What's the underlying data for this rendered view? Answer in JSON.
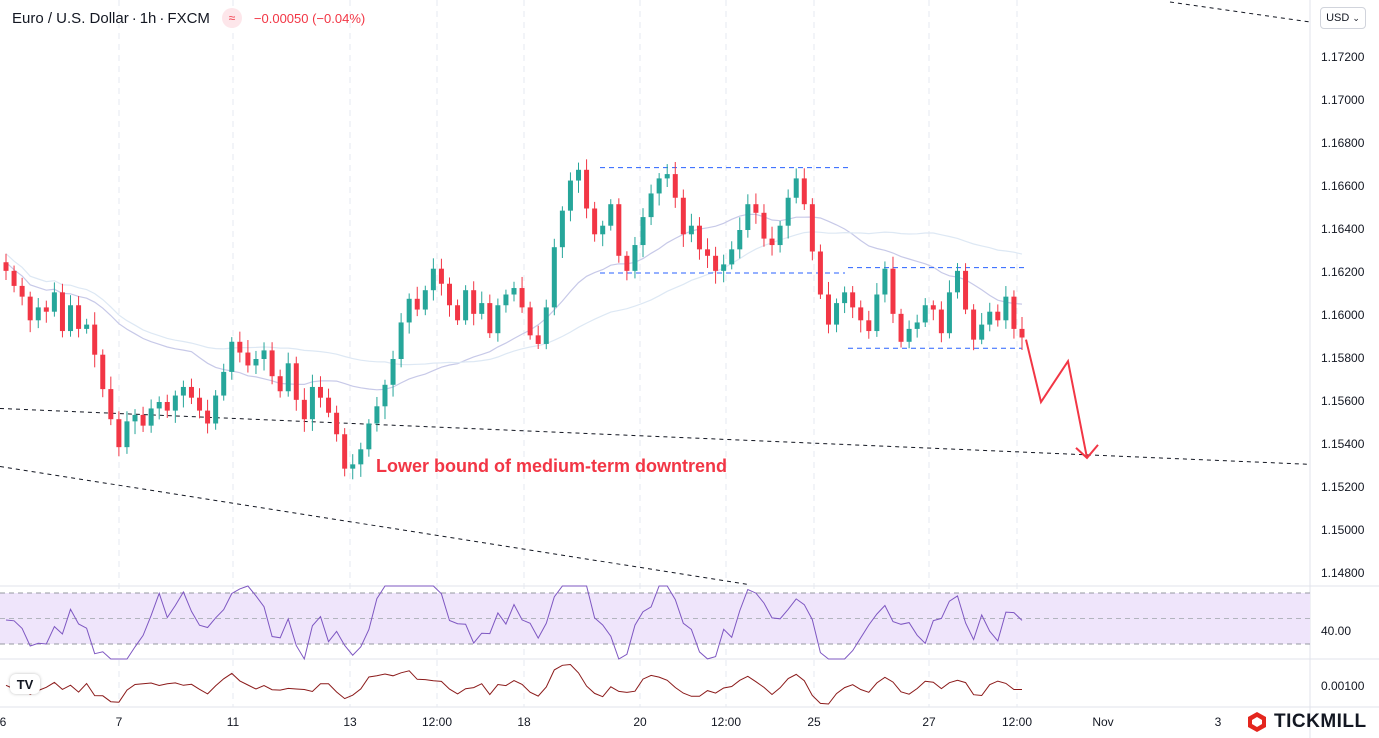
{
  "header": {
    "symbol": "Euro / U.S. Dollar",
    "interval": "1h",
    "source": "FXCM",
    "indicator_glyph": "≈",
    "change": "−0.00050 (−0.04%)",
    "separator": "·"
  },
  "currency_button": "USD",
  "annotation": "Lower bound of medium-term downtrend",
  "brand": "TICKMILL",
  "tv_logo": "TV",
  "colors": {
    "up": "#26a69a",
    "down": "#f23645",
    "rsi_line": "#7e57c2",
    "rsi_band": "#efe5fb",
    "osc_line": "#8b1a1a",
    "level": "#2962ff",
    "trend": "#131722",
    "ma1": "#c7c9e8",
    "ma2": "#dde8f4"
  },
  "chart_data": {
    "type": "candlestick",
    "y_axis": {
      "ticks": [
        "1.17200",
        "1.17000",
        "1.16800",
        "1.16600",
        "1.16400",
        "1.16200",
        "1.16000",
        "1.15800",
        "1.15600",
        "1.15400",
        "1.15200",
        "1.15000",
        "1.14800"
      ],
      "range": [
        1.1475,
        1.1745
      ]
    },
    "x_axis": {
      "ticks": [
        "6",
        "7",
        "11",
        "13",
        "12:00",
        "18",
        "20",
        "12:00",
        "25",
        "27",
        "12:00",
        "Nov",
        "3"
      ]
    },
    "rsi": {
      "label": "40.00",
      "upper": 70,
      "lower": 30,
      "mid": 50
    },
    "oscillator": {
      "label": "0.00100"
    },
    "levels": {
      "resistance_high": 1.1669,
      "support_range_top": 1.162,
      "range2_top": 1.16225,
      "range2_bottom": 1.1585
    },
    "trendlines": [
      {
        "from": [
          "t0",
          1.1557
        ],
        "to": [
          "t_end",
          1.1531
        ]
      },
      {
        "from": [
          "t0",
          1.153
        ],
        "to": [
          "t_mid",
          1.1475
        ]
      },
      {
        "from": [
          "t_start2",
          1.1745
        ],
        "to": [
          "t_end",
          1.1735
        ]
      }
    ],
    "projection": [
      1.1589,
      1.156,
      1.1579,
      1.1534
    ],
    "price_path": [
      1.1621,
      1.1614,
      1.1609,
      1.1598,
      1.1604,
      1.1602,
      1.1611,
      1.1593,
      1.1605,
      1.1594,
      1.1596,
      1.1582,
      1.1566,
      1.1552,
      1.1539,
      1.1551,
      1.1554,
      1.1549,
      1.1557,
      1.156,
      1.1556,
      1.1563,
      1.1567,
      1.1562,
      1.1556,
      1.155,
      1.1563,
      1.1574,
      1.1588,
      1.1583,
      1.1577,
      1.158,
      1.1584,
      1.1572,
      1.1565,
      1.1578,
      1.1561,
      1.1552,
      1.1567,
      1.1562,
      1.1555,
      1.1545,
      1.1529,
      1.1531,
      1.1538,
      1.155,
      1.1558,
      1.1568,
      1.158,
      1.1597,
      1.1608,
      1.1603,
      1.1612,
      1.1622,
      1.1615,
      1.1605,
      1.1598,
      1.1612,
      1.1601,
      1.1606,
      1.1592,
      1.1605,
      1.161,
      1.1613,
      1.1604,
      1.1591,
      1.1587,
      1.1604,
      1.1632,
      1.1649,
      1.1663,
      1.1668,
      1.165,
      1.1638,
      1.1642,
      1.1652,
      1.1628,
      1.1621,
      1.1633,
      1.1646,
      1.1657,
      1.1664,
      1.1666,
      1.1655,
      1.1638,
      1.1642,
      1.1631,
      1.1628,
      1.1621,
      1.1624,
      1.1631,
      1.164,
      1.1652,
      1.1648,
      1.1636,
      1.1633,
      1.1642,
      1.1655,
      1.1664,
      1.1652,
      1.163,
      1.161,
      1.1596,
      1.1606,
      1.1611,
      1.1604,
      1.1598,
      1.1593,
      1.161,
      1.1622,
      1.1601,
      1.1588,
      1.1594,
      1.1597,
      1.1605,
      1.1603,
      1.1592,
      1.1611,
      1.1621,
      1.1603,
      1.1589,
      1.1596,
      1.1602,
      1.1598,
      1.1609,
      1.1594,
      1.159
    ]
  }
}
